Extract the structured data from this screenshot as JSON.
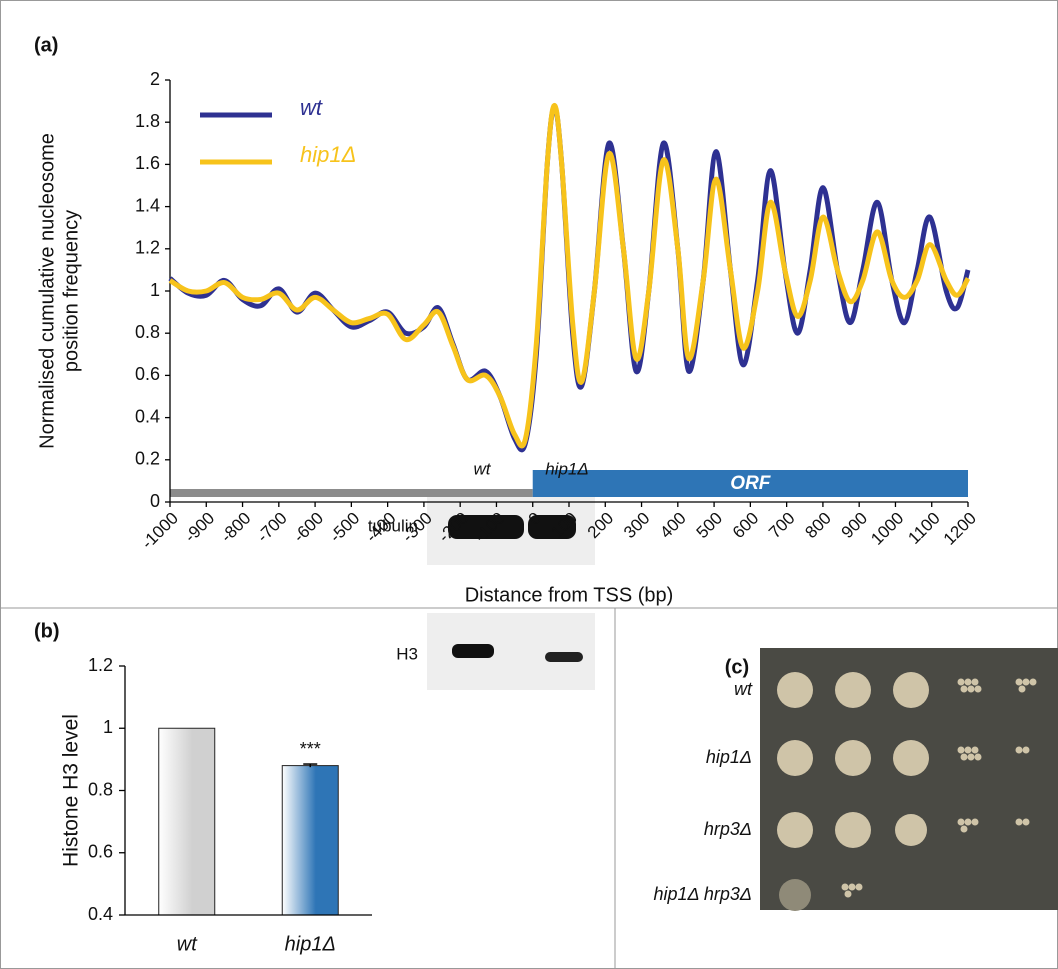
{
  "chart_data": [
    {
      "type": "line",
      "panel": "(a)",
      "y_label": [
        "Normalised cumulative nucleosome",
        "position frequency"
      ],
      "x_label": "Distance from TSS (bp)",
      "x": [
        -1000,
        -950,
        -900,
        -850,
        -800,
        -750,
        -700,
        -650,
        -600,
        -550,
        -500,
        -450,
        -400,
        -350,
        -300,
        -260,
        -220,
        -180,
        -130,
        -90,
        -50,
        -20,
        10,
        40,
        60,
        80,
        110,
        135,
        170,
        210,
        250,
        285,
        320,
        360,
        400,
        430,
        470,
        505,
        545,
        580,
        620,
        655,
        695,
        730,
        765,
        800,
        840,
        875,
        910,
        950,
        990,
        1025,
        1060,
        1095,
        1140,
        1170,
        1200
      ],
      "series": [
        {
          "name": "wt",
          "color": "#2e3192",
          "values": [
            1.06,
            0.99,
            0.98,
            1.05,
            0.96,
            0.93,
            1.01,
            0.9,
            0.99,
            0.91,
            0.83,
            0.86,
            0.9,
            0.8,
            0.83,
            0.92,
            0.75,
            0.58,
            0.62,
            0.5,
            0.3,
            0.28,
            0.7,
            1.6,
            1.87,
            1.6,
            0.8,
            0.55,
            1.0,
            1.7,
            1.2,
            0.62,
            1.0,
            1.7,
            1.2,
            0.62,
            1.05,
            1.66,
            1.1,
            0.65,
            1.05,
            1.57,
            1.1,
            0.8,
            1.1,
            1.49,
            1.1,
            0.85,
            1.1,
            1.42,
            1.05,
            0.85,
            1.1,
            1.35,
            1.0,
            0.92,
            1.1
          ]
        },
        {
          "name": "hip1Δ",
          "color": "#f7c31b",
          "values": [
            1.05,
            1.0,
            1.0,
            1.04,
            0.97,
            0.96,
            0.99,
            0.91,
            0.97,
            0.91,
            0.85,
            0.87,
            0.89,
            0.77,
            0.84,
            0.9,
            0.74,
            0.58,
            0.6,
            0.5,
            0.32,
            0.3,
            0.75,
            1.6,
            1.88,
            1.6,
            0.85,
            0.57,
            1.0,
            1.65,
            1.2,
            0.68,
            1.0,
            1.62,
            1.2,
            0.68,
            1.05,
            1.53,
            1.1,
            0.73,
            1.0,
            1.42,
            1.1,
            0.88,
            1.05,
            1.35,
            1.1,
            0.95,
            1.05,
            1.28,
            1.05,
            0.97,
            1.05,
            1.22,
            1.05,
            0.98,
            1.06
          ]
        }
      ],
      "regions": [
        {
          "start": -1000,
          "end": 0,
          "color": "#8c8c8c"
        },
        {
          "label": "ORF",
          "start": 0,
          "end": 1200,
          "color": "#2e75b6"
        }
      ],
      "xlim": [
        -1000,
        1200
      ],
      "xticks": [
        -1000,
        -900,
        -800,
        -700,
        -600,
        -500,
        -400,
        -300,
        -200,
        -100,
        0,
        100,
        200,
        300,
        400,
        500,
        600,
        700,
        800,
        900,
        1000,
        1100,
        1200
      ],
      "ylim": [
        0,
        2
      ],
      "yticks": [
        0,
        0.2,
        0.4,
        0.6,
        0.8,
        1,
        1.2,
        1.4,
        1.6,
        1.8,
        2
      ],
      "legend": "upper left"
    },
    {
      "type": "bar",
      "panel": "(b)",
      "y_label": "Histone H3 level",
      "categories": [
        "wt",
        "hip1Δ"
      ],
      "values": [
        1,
        0.88
      ],
      "errors": [
        0,
        0.005
      ],
      "colors": [
        "#d0d0d0",
        "#2e75b6"
      ],
      "annotation": "***",
      "ylim": [
        0.4,
        1.2
      ],
      "yticks": [
        0.4,
        0.6,
        0.8,
        1,
        1.2
      ]
    }
  ],
  "blot": {
    "lanes": [
      "wt",
      "hip1Δ"
    ],
    "rows": [
      "tubulin",
      "H3"
    ]
  },
  "spots": {
    "panel": "(c)",
    "strains": [
      "wt",
      "hip1Δ",
      "hrp3Δ",
      "hip1Δ hrp3Δ"
    ]
  }
}
